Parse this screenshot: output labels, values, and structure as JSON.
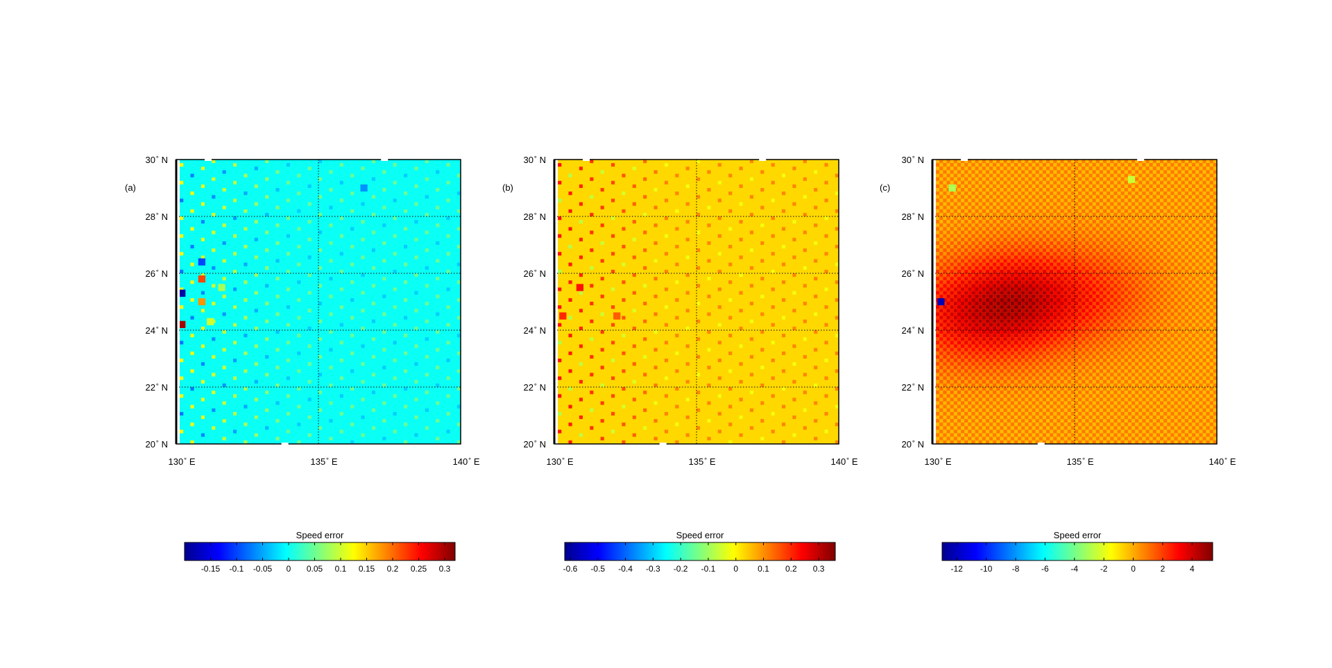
{
  "chart_data": [
    {
      "type": "heatmap",
      "panel_label": "(a)",
      "colormap": "jet",
      "background_value": 0.0,
      "xlim": [
        130,
        140
      ],
      "ylim": [
        20,
        30
      ],
      "x_ticks": [
        {
          "value": 130,
          "deg": "130",
          "hemi": "E"
        },
        {
          "value": 135,
          "deg": "135",
          "hemi": "E"
        },
        {
          "value": 140,
          "deg": "140",
          "hemi": "E"
        }
      ],
      "y_ticks": [
        {
          "value": 20,
          "deg": "20",
          "hemi": "N"
        },
        {
          "value": 22,
          "deg": "22",
          "hemi": "N"
        },
        {
          "value": 24,
          "deg": "24",
          "hemi": "N"
        },
        {
          "value": 26,
          "deg": "26",
          "hemi": "N"
        },
        {
          "value": 28,
          "deg": "28",
          "hemi": "N"
        },
        {
          "value": 30,
          "deg": "30",
          "hemi": "N"
        }
      ],
      "colorbar": {
        "title": "Speed error",
        "range": [
          -0.2,
          0.32
        ],
        "ticks": [
          -0.15,
          -0.1,
          -0.05,
          0,
          0.05,
          0.1,
          0.15,
          0.2,
          0.25,
          0.3
        ],
        "tick_labels": [
          "-0.15",
          "-0.1",
          "-0.05",
          "0",
          "0.05",
          "0.1",
          "0.15",
          "0.2",
          "0.25",
          "0.3"
        ]
      },
      "anomalies": [
        {
          "lon": 130.2,
          "lat": 25.3,
          "value": -0.18
        },
        {
          "lon": 130.2,
          "lat": 24.2,
          "value": 0.3
        },
        {
          "lon": 130.9,
          "lat": 25.8,
          "value": 0.22
        },
        {
          "lon": 130.9,
          "lat": 25.0,
          "value": 0.18
        },
        {
          "lon": 130.9,
          "lat": 26.4,
          "value": -0.1
        },
        {
          "lon": 131.2,
          "lat": 24.3,
          "value": 0.1
        },
        {
          "lon": 131.6,
          "lat": 25.5,
          "value": 0.08
        },
        {
          "lon": 136.6,
          "lat": 29.0,
          "value": -0.06
        }
      ]
    },
    {
      "type": "heatmap",
      "panel_label": "(b)",
      "colormap": "jet",
      "background_value": 0.03,
      "xlim": [
        130,
        140
      ],
      "ylim": [
        20,
        30
      ],
      "x_ticks": [
        {
          "value": 130,
          "deg": "130",
          "hemi": "E"
        },
        {
          "value": 135,
          "deg": "135",
          "hemi": "E"
        },
        {
          "value": 140,
          "deg": "140",
          "hemi": "E"
        }
      ],
      "y_ticks": [
        {
          "value": 20,
          "deg": "20",
          "hemi": "N"
        },
        {
          "value": 22,
          "deg": "22",
          "hemi": "N"
        },
        {
          "value": 24,
          "deg": "24",
          "hemi": "N"
        },
        {
          "value": 26,
          "deg": "26",
          "hemi": "N"
        },
        {
          "value": 28,
          "deg": "28",
          "hemi": "N"
        },
        {
          "value": 30,
          "deg": "30",
          "hemi": "N"
        }
      ],
      "colorbar": {
        "title": "Speed error",
        "range": [
          -0.62,
          0.36
        ],
        "ticks": [
          -0.6,
          -0.5,
          -0.4,
          -0.3,
          -0.2,
          -0.1,
          0,
          0.1,
          0.2,
          0.3
        ],
        "tick_labels": [
          "-0.6",
          "-0.5",
          "-0.4",
          "-0.3",
          "-0.2",
          "-0.1",
          "0",
          "0.1",
          "0.2",
          "0.3"
        ]
      },
      "anomalies": [
        {
          "lon": 130.3,
          "lat": 24.5,
          "value": 0.2
        },
        {
          "lon": 130.9,
          "lat": 25.5,
          "value": 0.22
        },
        {
          "lon": 132.2,
          "lat": 24.5,
          "value": 0.15
        }
      ]
    },
    {
      "type": "heatmap",
      "panel_label": "(c)",
      "colormap": "jet",
      "background_value": 0.3,
      "xlim": [
        130,
        140
      ],
      "ylim": [
        20,
        30
      ],
      "x_ticks": [
        {
          "value": 130,
          "deg": "130",
          "hemi": "E"
        },
        {
          "value": 135,
          "deg": "135",
          "hemi": "E"
        },
        {
          "value": 140,
          "deg": "140",
          "hemi": "E"
        }
      ],
      "y_ticks": [
        {
          "value": 20,
          "deg": "20",
          "hemi": "N"
        },
        {
          "value": 22,
          "deg": "22",
          "hemi": "N"
        },
        {
          "value": 24,
          "deg": "24",
          "hemi": "N"
        },
        {
          "value": 26,
          "deg": "26",
          "hemi": "N"
        },
        {
          "value": 28,
          "deg": "28",
          "hemi": "N"
        },
        {
          "value": 30,
          "deg": "30",
          "hemi": "N"
        }
      ],
      "colorbar": {
        "title": "Speed error",
        "range": [
          -13,
          5.4
        ],
        "ticks": [
          -12,
          -10,
          -8,
          -6,
          -4,
          -2,
          0,
          2,
          4
        ],
        "tick_labels": [
          "-12",
          "-10",
          "-8",
          "-6",
          "-4",
          "-2",
          "0",
          "2",
          "4"
        ]
      },
      "hotspots": [
        {
          "lon": 133.2,
          "lat": 25.0,
          "value": 3.6
        },
        {
          "lon": 131.0,
          "lat": 24.5,
          "value": 2.6
        },
        {
          "lon": 136.0,
          "lat": 25.3,
          "value": 1.6
        }
      ],
      "anomalies": [
        {
          "lon": 130.3,
          "lat": 25.0,
          "value": -12.0
        },
        {
          "lon": 130.7,
          "lat": 29.0,
          "value": -3.0
        },
        {
          "lon": 137.0,
          "lat": 29.3,
          "value": -2.5
        }
      ]
    }
  ]
}
